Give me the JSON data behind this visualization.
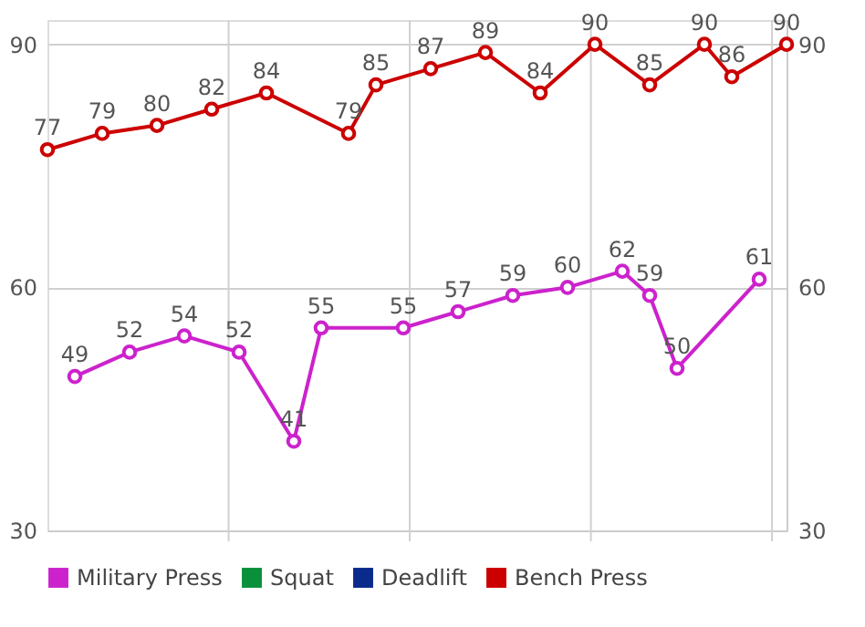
{
  "chart_data": {
    "type": "line",
    "categories": [
      null,
      null,
      null,
      null,
      null,
      null,
      null,
      null,
      null,
      null,
      null,
      null,
      null,
      null,
      null,
      null,
      null,
      null,
      null,
      null,
      null,
      null,
      null,
      null,
      null,
      null,
      null,
      null
    ],
    "ylim": [
      30,
      93
    ],
    "yticks": [
      30,
      60,
      90
    ],
    "y2lim": [
      30,
      93
    ],
    "y2ticks": [
      30,
      60,
      90
    ],
    "grid": "y",
    "legend": "bottom",
    "marker": "circle",
    "line_style": "solid",
    "data_labels": true,
    "series": [
      {
        "name": "Military Press",
        "color": "#cc22cc",
        "values": [
          null,
          49,
          null,
          52,
          null,
          54,
          null,
          52,
          null,
          41,
          55,
          null,
          null,
          55,
          null,
          57,
          null,
          59,
          null,
          60,
          null,
          62,
          59,
          50,
          null,
          null,
          61,
          null
        ]
      },
      {
        "name": "Squat",
        "color": "#0a8f3a",
        "values": [
          null,
          null,
          null,
          null,
          null,
          null,
          null,
          null,
          null,
          null,
          null,
          null,
          null,
          null,
          null,
          null,
          null,
          null,
          null,
          null,
          null,
          null,
          null,
          null,
          null,
          null,
          null,
          null
        ]
      },
      {
        "name": "Deadlift",
        "color": "#0a2a8c",
        "values": [
          null,
          null,
          null,
          null,
          null,
          null,
          null,
          null,
          null,
          null,
          null,
          null,
          null,
          null,
          null,
          null,
          null,
          null,
          null,
          null,
          null,
          null,
          null,
          null,
          null,
          null,
          null,
          null
        ]
      },
      {
        "name": "Bench Press",
        "color": "#cc0000",
        "values": [
          77,
          null,
          79,
          null,
          80,
          null,
          82,
          null,
          84,
          null,
          null,
          79,
          85,
          null,
          87,
          null,
          89,
          null,
          84,
          null,
          90,
          null,
          85,
          null,
          90,
          86,
          null,
          90
        ]
      }
    ]
  }
}
